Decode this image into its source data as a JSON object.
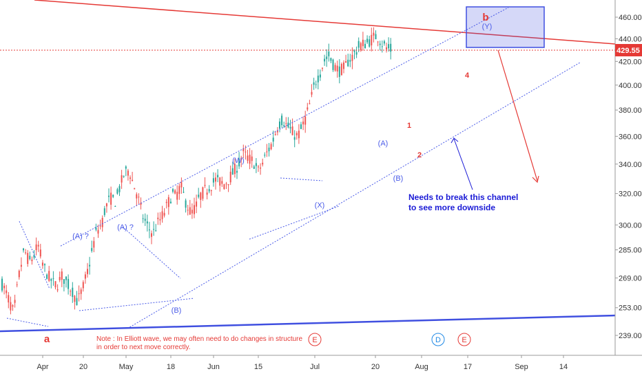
{
  "chart_data": {
    "type": "candlestick",
    "y_axis": {
      "ticks": [
        460,
        440,
        420,
        400,
        380,
        360,
        340,
        320,
        300,
        285,
        269,
        253,
        239
      ],
      "current_price": "429.55",
      "scale": "log"
    },
    "x_axis": {
      "ticks": [
        "Apr",
        "20",
        "May",
        "18",
        "Jun",
        "15",
        "Jul",
        "20",
        "Aug",
        "17",
        "Sep",
        "14"
      ]
    },
    "price_path": [
      [
        300,
        268
      ],
      [
        303,
        262
      ],
      [
        306,
        255
      ],
      [
        308,
        250
      ],
      [
        311,
        270
      ],
      [
        314,
        285
      ],
      [
        317,
        278
      ],
      [
        320,
        282
      ],
      [
        322,
        288
      ],
      [
        325,
        276
      ],
      [
        328,
        270
      ],
      [
        331,
        266
      ],
      [
        333,
        265
      ],
      [
        336,
        270
      ],
      [
        339,
        266
      ],
      [
        342,
        262
      ],
      [
        345,
        256
      ],
      [
        348,
        263
      ],
      [
        351,
        273
      ],
      [
        353,
        282
      ],
      [
        356,
        296
      ],
      [
        359,
        300
      ],
      [
        361,
        310
      ],
      [
        364,
        317
      ],
      [
        367,
        315
      ],
      [
        369,
        322
      ],
      [
        372,
        333
      ],
      [
        375,
        336
      ],
      [
        377,
        328
      ],
      [
        380,
        318
      ],
      [
        383,
        305
      ],
      [
        386,
        298
      ],
      [
        389,
        295
      ],
      [
        391,
        300
      ],
      [
        394,
        305
      ],
      [
        397,
        312
      ],
      [
        400,
        320
      ],
      [
        402,
        318
      ],
      [
        405,
        325
      ],
      [
        408,
        314
      ],
      [
        411,
        307
      ],
      [
        414,
        312
      ],
      [
        416,
        318
      ],
      [
        419,
        322
      ],
      [
        422,
        325
      ],
      [
        425,
        329
      ],
      [
        428,
        328
      ],
      [
        430,
        326
      ],
      [
        433,
        330
      ],
      [
        436,
        335
      ],
      [
        439,
        341
      ],
      [
        441,
        348
      ],
      [
        444,
        344
      ],
      [
        447,
        342
      ],
      [
        450,
        335
      ],
      [
        453,
        342
      ],
      [
        455,
        348
      ],
      [
        458,
        355
      ],
      [
        461,
        367
      ],
      [
        464,
        373
      ],
      [
        466,
        369
      ],
      [
        469,
        364
      ],
      [
        472,
        360
      ],
      [
        474,
        362
      ],
      [
        477,
        372
      ],
      [
        480,
        385
      ],
      [
        483,
        402
      ],
      [
        486,
        411
      ],
      [
        488,
        420
      ],
      [
        491,
        425
      ],
      [
        494,
        416
      ],
      [
        497,
        412
      ],
      [
        500,
        414
      ],
      [
        502,
        420
      ],
      [
        505,
        425
      ],
      [
        508,
        432
      ],
      [
        510,
        435
      ],
      [
        513,
        436
      ],
      [
        516,
        440
      ],
      [
        519,
        443
      ],
      [
        521,
        438
      ],
      [
        524,
        432
      ],
      [
        527,
        430
      ]
    ],
    "wave_labels": {
      "black": [
        "a",
        "b",
        "1",
        "2",
        "4"
      ],
      "blue": [
        "(A) ?",
        "(A) ?",
        "(B)",
        "(W)",
        "(X)",
        "(A)",
        "(B)",
        "(Y)"
      ]
    },
    "annotations": [
      {
        "text": "Needs to break this channel",
        "color": "#1a1ad6"
      },
      {
        "text": "to see more downside",
        "color": "#1a1ad6"
      }
    ],
    "note_lines": [
      "Note : In Elliott wave, we may often need to do changes in structure",
      "  in order to next move correctly."
    ],
    "event_markers": [
      "E",
      "E",
      "D",
      "E"
    ],
    "colors": {
      "up": "#26a69a",
      "down": "#ef5350",
      "channel": "#4a5be8",
      "resistance": "#e53935",
      "price_label_bg": "#e53935",
      "box": "#3f4fe0"
    }
  }
}
